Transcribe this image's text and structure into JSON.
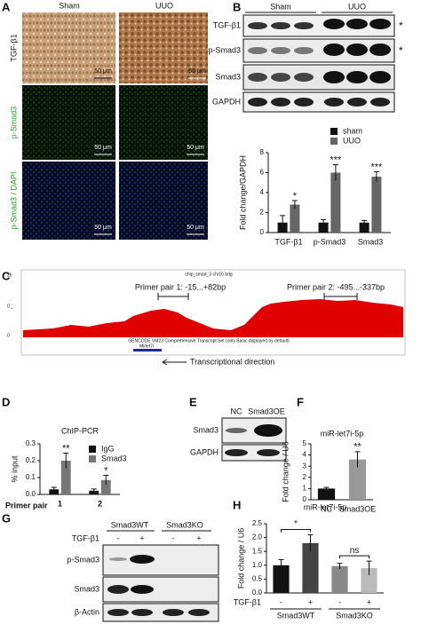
{
  "figure": {
    "A": {
      "letter": "A",
      "columns": [
        "Sham",
        "UUO"
      ],
      "rows": [
        "TGF-β1",
        "p-Smad3",
        "p-Smad3 / DAPI"
      ],
      "scale_bar": "50 μm"
    },
    "B": {
      "letter": "B",
      "groups": [
        "Sham",
        "UUO"
      ],
      "bands": [
        "TGF-β1",
        "p-Smad3",
        "Smad3",
        "GAPDH"
      ],
      "marks": [
        "*",
        "*"
      ]
    },
    "C": {
      "letter": "C",
      "track_labels": [
        "25",
        "0 _",
        "0"
      ],
      "track_title": "chip_smad_3 chr16 bdg",
      "primer_pairs": [
        "Primer pair 1: -15...+82bp",
        "Primer pair 2: -495...-337bp"
      ],
      "annotation_track": "GENCODE VM23 Comprehensive Transcript Set (only Basic displayed by default)",
      "gene": "Mirlet7i",
      "direction": "Transcriptional direction"
    },
    "E": {
      "letter": "E",
      "columns": [
        "NC",
        "Smad3OE"
      ],
      "bands": [
        "Smad3",
        "GAPDH"
      ]
    },
    "G": {
      "letter": "G",
      "groups": [
        "Smad3WT",
        "Smad3KO"
      ],
      "treatment": "TGF-β1",
      "signs": [
        "-",
        "+",
        "-",
        "+"
      ],
      "bands": [
        "p-Smad3",
        "Smad3",
        "β-Actin"
      ]
    }
  },
  "chart_data": [
    {
      "type": "bar",
      "y_label": "Fold change/GAPDH",
      "categories": [
        "TGF-β1",
        "p-Smad3",
        "Smad3"
      ],
      "series": [
        {
          "name": "sham",
          "color": "#111111",
          "values": [
            1.0,
            1.0,
            1.0
          ],
          "errors": [
            0.7,
            0.3,
            0.2
          ]
        },
        {
          "name": "UUO",
          "color": "#666666",
          "values": [
            2.8,
            6.0,
            5.6
          ],
          "errors": [
            0.4,
            0.8,
            0.5
          ],
          "significance": [
            "*",
            "***",
            "***"
          ]
        }
      ],
      "ylim": [
        0,
        8
      ],
      "yticks": [
        0,
        2,
        4,
        6,
        8
      ]
    },
    {
      "type": "bar",
      "panel_label": "D",
      "title": "ChIP-PCR",
      "y_label": "% input",
      "x_label": "Primer pair",
      "categories": [
        "1",
        "2"
      ],
      "series": [
        {
          "name": "IgG",
          "color": "#111111",
          "values": [
            0.03,
            0.022
          ],
          "errors": [
            0.012,
            0.01
          ]
        },
        {
          "name": "Smad3",
          "color": "#777777",
          "values": [
            0.2,
            0.085
          ],
          "errors": [
            0.045,
            0.028
          ],
          "significance": [
            "**",
            "*"
          ]
        }
      ],
      "ylim": [
        0,
        0.3
      ],
      "yticks": [
        {
          "value": 0,
          "label": "0.0"
        },
        0.1,
        0.2,
        0.3
      ]
    },
    {
      "type": "bar",
      "panel_label": "F",
      "title": "miR-let7i-5p",
      "y_label": "Fold change / U6",
      "categories": [
        "NC",
        "Smad3OE"
      ],
      "values": [
        1.0,
        3.6
      ],
      "errors": [
        0.1,
        0.7
      ],
      "colors": [
        "#111111",
        "#999999"
      ],
      "significance": [
        null,
        "**"
      ],
      "ylim": [
        0,
        5
      ],
      "yticks": [
        0,
        1,
        2,
        3,
        4,
        5
      ]
    },
    {
      "type": "bar",
      "panel_label": "H",
      "title": "miR-let7i-5p",
      "y_label": "Fold change / U6",
      "x_label": "TGF-β1",
      "categories": [
        "-",
        "+",
        "-",
        "+"
      ],
      "groups": [
        "Smad3WT",
        "Smad3KO"
      ],
      "values": [
        1.0,
        1.8,
        0.97,
        0.9
      ],
      "errors": [
        0.2,
        0.3,
        0.1,
        0.25
      ],
      "colors": [
        "#111111",
        "#444444",
        "#888888",
        "#bbbbbb"
      ],
      "comparisons": [
        "*",
        "ns"
      ],
      "ylim": [
        0,
        2.5
      ],
      "yticks": [
        {
          "value": 0,
          "label": "0.0"
        },
        0.5,
        {
          "value": 1,
          "label": "1.0"
        },
        1.5,
        {
          "value": 2,
          "label": "2.0"
        },
        2.5
      ]
    }
  ]
}
